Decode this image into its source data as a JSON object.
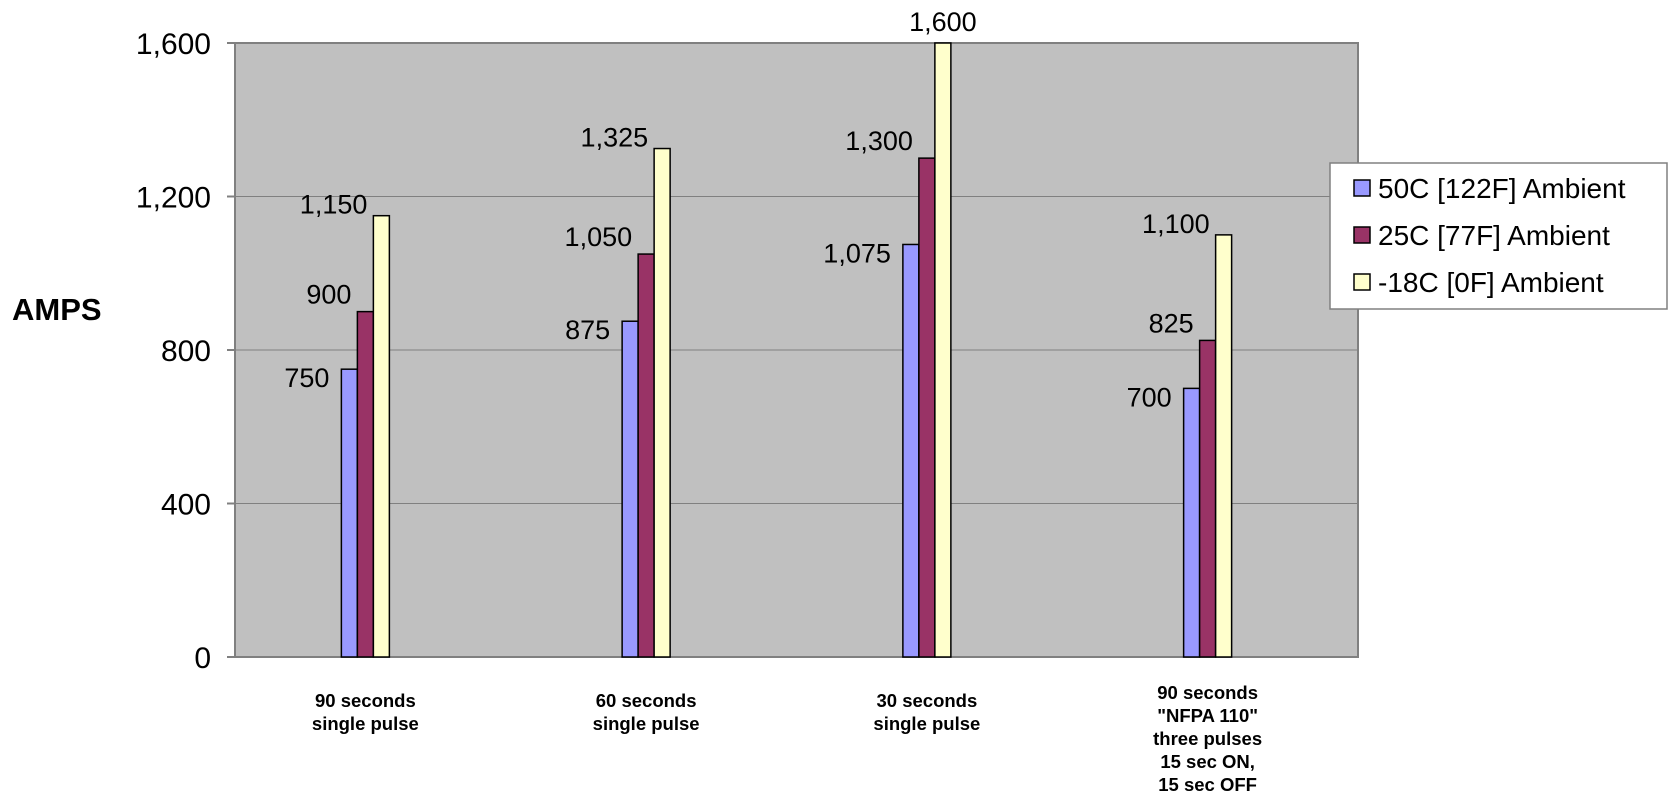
{
  "chart_data": {
    "type": "bar",
    "title": "",
    "xlabel": "",
    "ylabel": "AMPS",
    "ylim": [
      0,
      1600
    ],
    "yticks": [
      "0",
      "400",
      "800",
      "1,200",
      "1,600"
    ],
    "ytick_values": [
      0,
      400,
      800,
      1200,
      1600
    ],
    "grid": true,
    "legend_position": "right",
    "plot_background": "#C0C0C0",
    "categories": [
      [
        "90 seconds",
        "single pulse"
      ],
      [
        "60 seconds",
        "single pulse"
      ],
      [
        "30 seconds",
        "single pulse"
      ],
      [
        "90 seconds",
        "\"NFPA 110\"",
        "three pulses",
        "15 sec ON,",
        "15 sec OFF"
      ]
    ],
    "series": [
      {
        "name": "50C [122F] Ambient",
        "color": "#9999FF",
        "values": [
          750,
          875,
          1075,
          700
        ],
        "labels": [
          "750",
          "875",
          "1,075",
          "700"
        ]
      },
      {
        "name": "25C [77F] Ambient",
        "color": "#993366",
        "values": [
          900,
          1050,
          1300,
          825
        ],
        "labels": [
          "900",
          "1,050",
          "1,300",
          "825"
        ]
      },
      {
        "name": "-18C [0F] Ambient",
        "color": "#FFFFCC",
        "values": [
          1150,
          1325,
          1600,
          1100
        ],
        "labels": [
          "1,150",
          "1,325",
          "1,600",
          "1,100"
        ]
      }
    ]
  }
}
